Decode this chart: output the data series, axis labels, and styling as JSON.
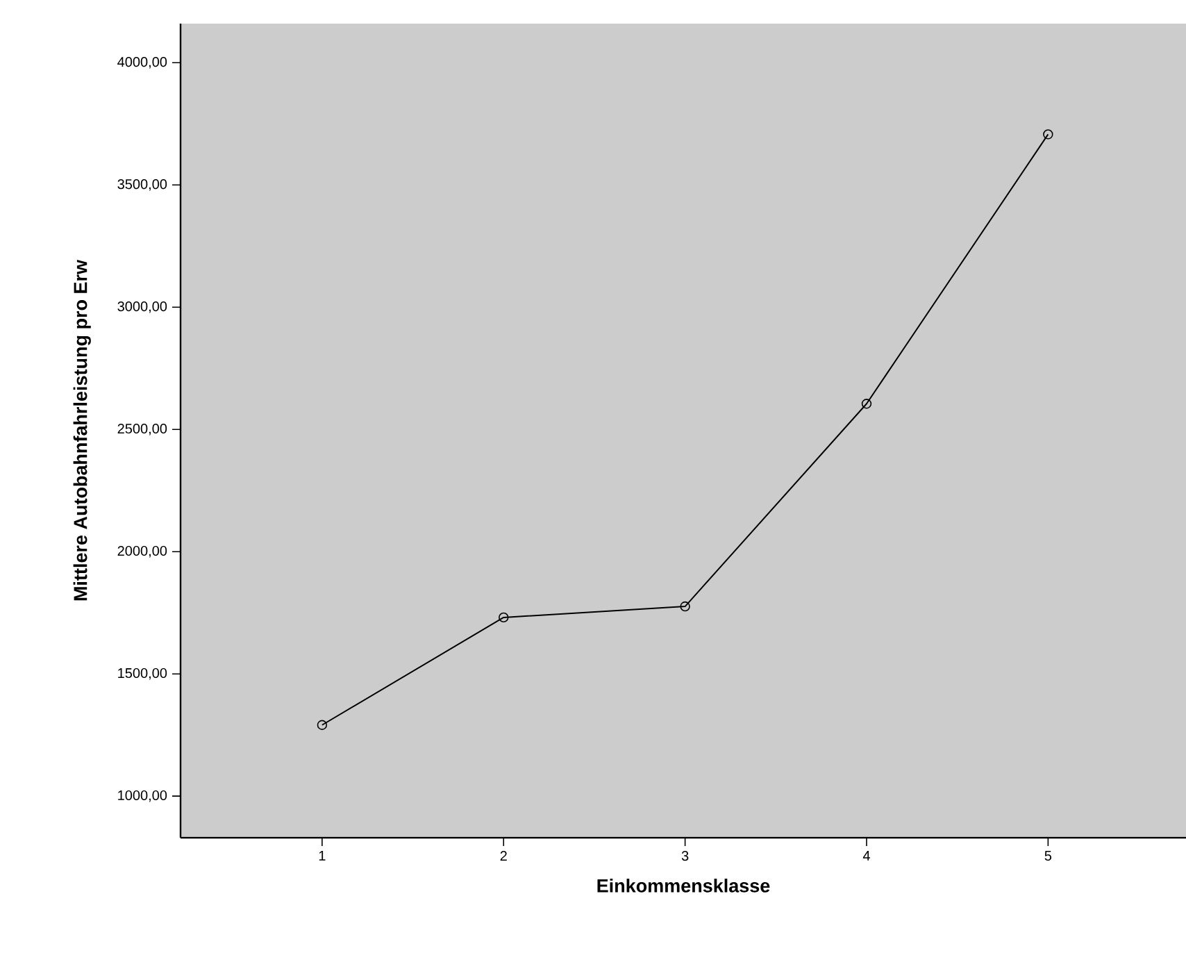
{
  "chart_data": {
    "type": "line",
    "xlabel": "Einkommensklasse",
    "ylabel": "Mittlere Autobahnfahrleistung pro Erw",
    "categories": [
      "1",
      "2",
      "3",
      "4",
      "5"
    ],
    "series": [
      {
        "color": "#000000",
        "values": [
          1291,
          1731,
          1776,
          2605,
          3707
        ]
      }
    ],
    "ylim": [
      830,
      4160
    ],
    "yticks": [
      {
        "value": 1000,
        "label": "1000,00"
      },
      {
        "value": 1500,
        "label": "1500,00"
      },
      {
        "value": 2000,
        "label": "2000,00"
      },
      {
        "value": 2500,
        "label": "2500,00"
      },
      {
        "value": 3000,
        "label": "3000,00"
      },
      {
        "value": 3500,
        "label": "3500,00"
      },
      {
        "value": 4000,
        "label": "4000,00"
      }
    ],
    "marker": "circle",
    "line_style": "solid"
  }
}
